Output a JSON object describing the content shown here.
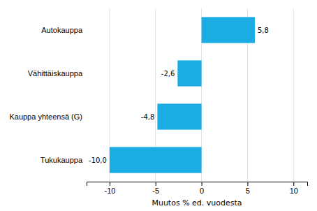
{
  "chart_data": {
    "type": "bar",
    "orientation": "horizontal",
    "categories": [
      "Tukukauppa",
      "Kauppa yhteensä (G)",
      "Vähittäiskauppa",
      "Autokauppa"
    ],
    "values": [
      -10.0,
      -4.8,
      -2.6,
      5.8
    ],
    "value_labels": [
      "-10,0",
      "-4,8",
      "-2,6",
      "5,8"
    ],
    "data_labels": true,
    "color": "#1aace3",
    "xlabel": "Muutos % ed. vuodesta",
    "xlim": [
      -12.5,
      11.5
    ],
    "xticks": [
      -10,
      -5,
      0,
      5,
      10
    ],
    "grid": true
  }
}
